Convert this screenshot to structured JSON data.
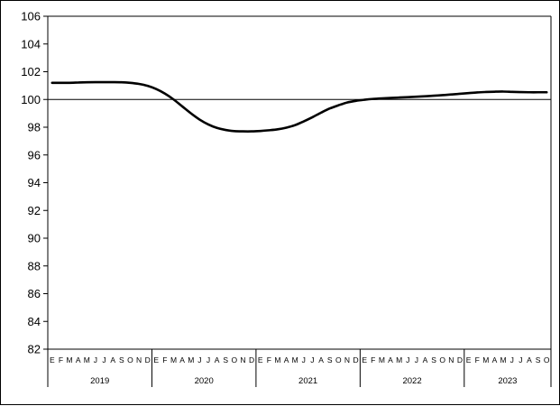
{
  "chart_data": {
    "type": "line",
    "title": "",
    "xlabel": "",
    "ylabel": "",
    "ylim": [
      82,
      106
    ],
    "yticks": [
      "82",
      "84",
      "86",
      "88",
      "90",
      "92",
      "94",
      "96",
      "98",
      "100",
      "102",
      "104",
      "106"
    ],
    "reference_line": 100,
    "grid": false,
    "legend": "none",
    "years": [
      {
        "label": "2019",
        "months": [
          "E",
          "F",
          "M",
          "A",
          "M",
          "J",
          "J",
          "A",
          "S",
          "O",
          "N",
          "D"
        ]
      },
      {
        "label": "2020",
        "months": [
          "E",
          "F",
          "M",
          "A",
          "M",
          "J",
          "J",
          "A",
          "S",
          "O",
          "N",
          "D"
        ]
      },
      {
        "label": "2021",
        "months": [
          "E",
          "F",
          "M",
          "A",
          "M",
          "J",
          "J",
          "A",
          "S",
          "O",
          "N",
          "D"
        ]
      },
      {
        "label": "2022",
        "months": [
          "E",
          "F",
          "M",
          "A",
          "M",
          "J",
          "J",
          "A",
          "S",
          "O",
          "N",
          "D"
        ]
      },
      {
        "label": "2023",
        "months": [
          "E",
          "F",
          "M",
          "A",
          "M",
          "J",
          "J",
          "A",
          "S",
          "O"
        ]
      }
    ],
    "series": [
      {
        "color": "#000000",
        "values": [
          101.2,
          101.2,
          101.2,
          101.22,
          101.24,
          101.25,
          101.25,
          101.25,
          101.24,
          101.2,
          101.12,
          100.98,
          100.75,
          100.42,
          100.0,
          99.5,
          99.0,
          98.55,
          98.2,
          97.95,
          97.8,
          97.72,
          97.7,
          97.7,
          97.73,
          97.78,
          97.85,
          97.97,
          98.15,
          98.42,
          98.72,
          99.05,
          99.35,
          99.58,
          99.78,
          99.9,
          99.98,
          100.04,
          100.08,
          100.11,
          100.14,
          100.17,
          100.2,
          100.23,
          100.27,
          100.31,
          100.36,
          100.41,
          100.46,
          100.51,
          100.54,
          100.56,
          100.57,
          100.55,
          100.53,
          100.52,
          100.52,
          100.52
        ]
      }
    ]
  }
}
